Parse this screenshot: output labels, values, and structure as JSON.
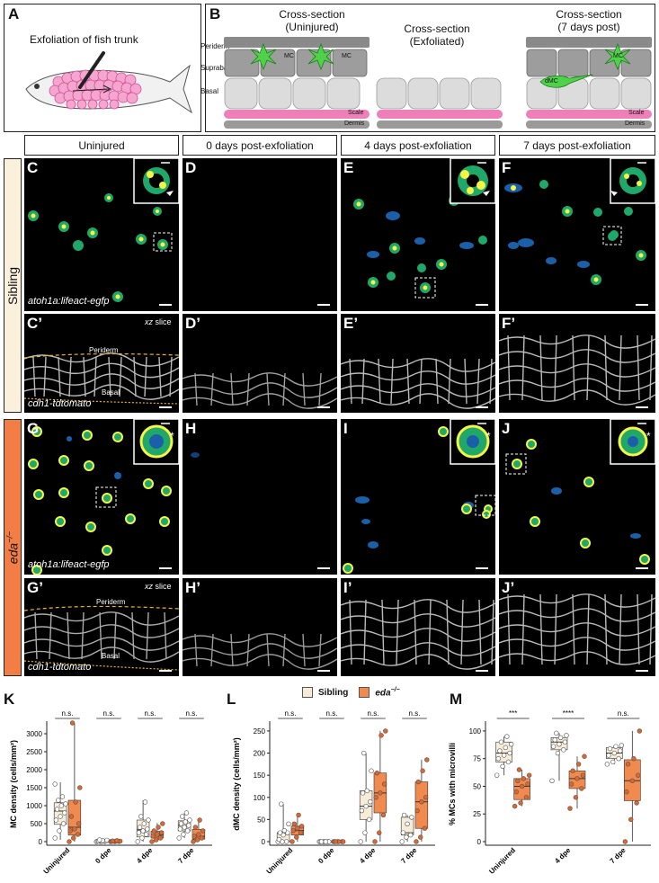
{
  "panel_letters": {
    "A": "A",
    "B": "B",
    "C": "C",
    "Cp": "C’",
    "D": "D",
    "Dp": "D’",
    "E": "E",
    "Ep": "E’",
    "F": "F",
    "Fp": "F’",
    "G": "G",
    "Gp": "G’",
    "H": "H",
    "Hp": "H’",
    "I": "I",
    "Ip": "I’",
    "J": "J",
    "Jp": "J’",
    "K": "K",
    "L": "L",
    "M": "M"
  },
  "panelA": {
    "title": "Exfoliation of fish trunk"
  },
  "panelB": {
    "col1": "Cross-section\n(Uninjured)",
    "col2": "Cross-section\n(Exfoliated)",
    "col3": "Cross-section\n(7 days post)",
    "layers": {
      "periderm": "Periderm",
      "suprabasal": "Suprabasal",
      "basal": "Basal"
    },
    "scale": "Scale",
    "dermis": "Dermis",
    "mc": "MC",
    "dmc": "dMC"
  },
  "column_headers": [
    "Uninjured",
    "0 days post-exfoliation",
    "4 days post-exfoliation",
    "7 days post-exfoliation"
  ],
  "rows": {
    "sibling": "Sibling",
    "eda": "eda",
    "eda_sup": "−/−"
  },
  "image_labels": {
    "lifeact": "atoh1a:lifeact-egfp",
    "cdh1": "cdh1-tdtomato",
    "xz": "xz slice",
    "periderm": "Periderm",
    "basal": "Basal",
    "asterisk": "*"
  },
  "legend": {
    "sibling": "Sibling",
    "eda": "eda",
    "eda_sup": "−/−"
  },
  "colors": {
    "sibling": "#f7ecd8",
    "eda": "#f08a4f",
    "eda_dark": "#e0672b",
    "tab_sibling": "#fbf0dc",
    "tab_eda": "#f27d45",
    "pink": "#f4a6cf",
    "scale": "#ef7fb8",
    "dermis": "#9a9a9a",
    "cell": "#dcdcdc",
    "cell_dark": "#8a8a8a",
    "mc": "#4fd14a"
  },
  "chart_data": [
    {
      "type": "box",
      "panel": "K",
      "ylabel": "MC density (cells/mm²)",
      "categories": [
        "Uninjured",
        "0 dpe",
        "4 dpe",
        "7 dpe"
      ],
      "ylim": [
        0,
        3200
      ],
      "yticks": [
        0,
        500,
        1000,
        1500,
        2000,
        2500,
        3000
      ],
      "significance": [
        "n.s.",
        "n.s.",
        "n.s.",
        "n.s."
      ],
      "series": [
        {
          "name": "Sibling",
          "boxes": [
            {
              "min": 50,
              "q1": 480,
              "median": 850,
              "q3": 1080,
              "max": 1650,
              "points": [
                100,
                300,
                500,
                600,
                700,
                800,
                900,
                1000,
                1050,
                1150,
                1250,
                1600
              ]
            },
            {
              "min": 0,
              "q1": 0,
              "median": 10,
              "q3": 25,
              "max": 50,
              "points": [
                0,
                0,
                5,
                10,
                10,
                15,
                20,
                30,
                40,
                50
              ]
            },
            {
              "min": 0,
              "q1": 130,
              "median": 330,
              "q3": 600,
              "max": 1150,
              "points": [
                0,
                100,
                200,
                250,
                300,
                350,
                400,
                500,
                600,
                700,
                1100
              ]
            },
            {
              "min": 100,
              "q1": 300,
              "median": 450,
              "q3": 580,
              "max": 800,
              "points": [
                100,
                200,
                300,
                350,
                400,
                450,
                500,
                550,
                600,
                700,
                800
              ]
            }
          ]
        },
        {
          "name": "eda",
          "boxes": [
            {
              "min": 0,
              "q1": 180,
              "median": 400,
              "q3": 1150,
              "max": 3300,
              "points": [
                0,
                100,
                200,
                300,
                350,
                500,
                700,
                1100,
                1500,
                3300
              ]
            },
            {
              "min": 0,
              "q1": 0,
              "median": 5,
              "q3": 15,
              "max": 30,
              "points": [
                0,
                0,
                5,
                5,
                10,
                15,
                20,
                30
              ]
            },
            {
              "min": 0,
              "q1": 100,
              "median": 180,
              "q3": 290,
              "max": 520,
              "points": [
                0,
                50,
                100,
                150,
                200,
                250,
                300,
                400,
                500
              ]
            },
            {
              "min": 0,
              "q1": 70,
              "median": 150,
              "q3": 340,
              "max": 650,
              "points": [
                0,
                50,
                100,
                150,
                200,
                300,
                400,
                600
              ]
            }
          ]
        }
      ]
    },
    {
      "type": "box",
      "panel": "L",
      "ylabel": "dMC density (cells/mm²)",
      "categories": [
        "Uninjured",
        "0 dpe",
        "4 dpe",
        "7 dpe"
      ],
      "ylim": [
        0,
        260
      ],
      "yticks": [
        0,
        50,
        100,
        150,
        200,
        250
      ],
      "significance": [
        "n.s.",
        "n.s.",
        "n.s.",
        "n.s."
      ],
      "series": [
        {
          "name": "Sibling",
          "boxes": [
            {
              "min": 0,
              "q1": 0,
              "median": 20,
              "q3": 20,
              "max": 85,
              "points": [
                0,
                0,
                0,
                5,
                15,
                20,
                20,
                25,
                40,
                85
              ]
            },
            {
              "min": 0,
              "q1": 0,
              "median": 0,
              "q3": 0,
              "max": 0,
              "points": [
                0,
                0,
                0,
                0,
                0,
                0,
                0,
                0
              ]
            },
            {
              "min": 0,
              "q1": 50,
              "median": 80,
              "q3": 115,
              "max": 200,
              "points": [
                0,
                20,
                50,
                70,
                80,
                90,
                110,
                115,
                160,
                200
              ]
            },
            {
              "min": 0,
              "q1": 15,
              "median": 20,
              "q3": 55,
              "max": 60,
              "points": [
                0,
                10,
                15,
                20,
                40,
                55,
                60
              ]
            }
          ]
        },
        {
          "name": "eda",
          "boxes": [
            {
              "min": 0,
              "q1": 15,
              "median": 25,
              "q3": 35,
              "max": 60,
              "points": [
                0,
                10,
                20,
                25,
                30,
                35,
                40,
                60
              ]
            },
            {
              "min": 0,
              "q1": 0,
              "median": 0,
              "q3": 0,
              "max": 0,
              "points": [
                0,
                0,
                0,
                0,
                0,
                0,
                0
              ]
            },
            {
              "min": 0,
              "q1": 65,
              "median": 110,
              "q3": 155,
              "max": 250,
              "points": [
                0,
                20,
                60,
                100,
                110,
                130,
                155,
                240,
                250
              ]
            },
            {
              "min": 0,
              "q1": 30,
              "median": 90,
              "q3": 135,
              "max": 185,
              "points": [
                0,
                10,
                30,
                70,
                90,
                100,
                135,
                160,
                185
              ]
            }
          ]
        }
      ]
    },
    {
      "type": "box",
      "panel": "M",
      "ylabel": "% MCs with microvilli",
      "categories": [
        "Uninjured",
        "4 dpe",
        "7 dpe"
      ],
      "ylim": [
        0,
        104
      ],
      "yticks": [
        0,
        25,
        50,
        75,
        100
      ],
      "significance": [
        "***",
        "****",
        "n.s."
      ],
      "series": [
        {
          "name": "Sibling",
          "boxes": [
            {
              "min": 60,
              "q1": 72,
              "median": 80,
              "q3": 90,
              "max": 95,
              "points": [
                60,
                68,
                72,
                75,
                78,
                80,
                82,
                85,
                88,
                90,
                95
              ]
            },
            {
              "min": 55,
              "q1": 83,
              "median": 90,
              "q3": 94,
              "max": 98,
              "points": [
                55,
                80,
                83,
                86,
                88,
                90,
                92,
                94,
                96,
                98
              ]
            },
            {
              "min": 70,
              "q1": 75,
              "median": 80,
              "q3": 85,
              "max": 87,
              "points": [
                70,
                72,
                75,
                78,
                80,
                82,
                84,
                86,
                87
              ]
            }
          ]
        },
        {
          "name": "eda",
          "boxes": [
            {
              "min": 32,
              "q1": 38,
              "median": 50,
              "q3": 57,
              "max": 65,
              "points": [
                32,
                35,
                40,
                45,
                50,
                52,
                55,
                57,
                60,
                65
              ]
            },
            {
              "min": 30,
              "q1": 48,
              "median": 57,
              "q3": 64,
              "max": 77,
              "points": [
                30,
                40,
                48,
                52,
                57,
                60,
                64,
                70,
                77
              ]
            },
            {
              "min": 0,
              "q1": 37,
              "median": 55,
              "q3": 74,
              "max": 100,
              "points": [
                0,
                20,
                35,
                45,
                55,
                60,
                70,
                75,
                100
              ]
            }
          ]
        }
      ]
    }
  ]
}
